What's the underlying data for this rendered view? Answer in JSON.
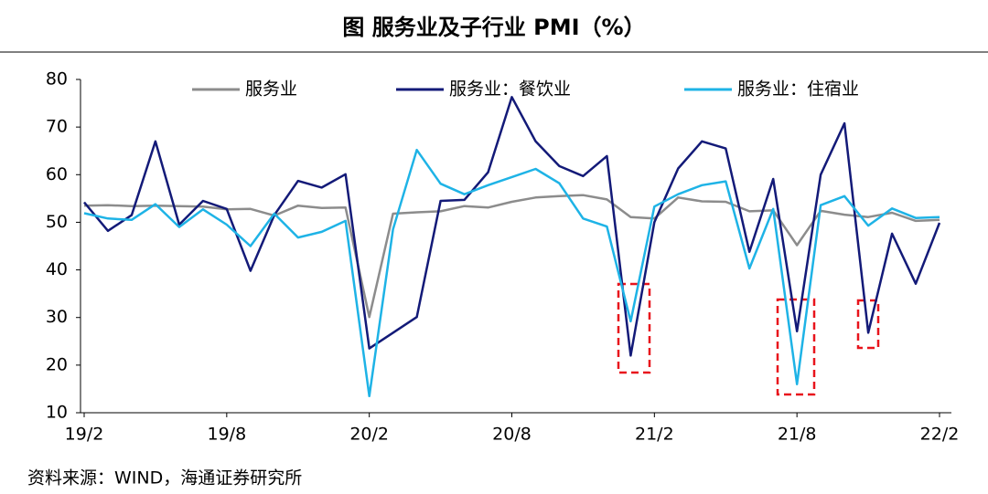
{
  "chart_data": {
    "type": "line",
    "title": "图 服务业及子行业 PMI（%）",
    "source": "资料来源：WIND，海通证券研究所",
    "categories": [
      "19/2",
      null,
      null,
      null,
      null,
      null,
      "19/8",
      null,
      null,
      null,
      null,
      null,
      "20/2",
      null,
      null,
      null,
      null,
      null,
      "20/8",
      null,
      null,
      null,
      null,
      null,
      "21/2",
      null,
      null,
      null,
      null,
      null,
      "21/8",
      null,
      null,
      null,
      null,
      null,
      "22/2"
    ],
    "series": [
      {
        "name": "服务业",
        "color": "#8c8c8c",
        "values": [
          53.5,
          53.6,
          53.4,
          53.5,
          53.4,
          53.3,
          52.7,
          52.8,
          51.4,
          53.5,
          53.0,
          53.1,
          30.1,
          51.8,
          52.1,
          52.3,
          53.4,
          53.1,
          54.3,
          55.2,
          55.5,
          55.7,
          54.8,
          51.1,
          50.8,
          55.2,
          54.4,
          54.3,
          52.3,
          52.5,
          45.2,
          52.4,
          51.6,
          51.1,
          52.0,
          50.3,
          50.5
        ]
      },
      {
        "name": "服务业：餐饮业",
        "color": "#131a78",
        "values": [
          54.2,
          48.2,
          51.5,
          67.0,
          49.5,
          54.5,
          52.8,
          39.8,
          51.5,
          58.7,
          57.3,
          60.1,
          23.5,
          26.8,
          30.1,
          54.5,
          54.7,
          60.5,
          76.3,
          67.0,
          61.8,
          59.7,
          63.9,
          22.0,
          50.0,
          61.3,
          67.0,
          65.5,
          43.8,
          59.1,
          27.1,
          60.0,
          70.8,
          26.8,
          47.6,
          37.1,
          49.9
        ]
      },
      {
        "name": "服务业：住宿业",
        "color": "#1eb3e6",
        "values": [
          51.9,
          50.8,
          50.5,
          53.8,
          49.0,
          52.7,
          49.5,
          45.0,
          51.8,
          46.8,
          48.0,
          50.3,
          13.5,
          48.5,
          65.2,
          58.1,
          55.9,
          57.8,
          59.5,
          61.2,
          58.2,
          50.8,
          49.1,
          29.2,
          53.3,
          55.9,
          57.8,
          58.6,
          40.3,
          52.8,
          16.0,
          53.6,
          55.5,
          49.3,
          52.9,
          50.9,
          51.1
        ]
      }
    ],
    "ylim": [
      10,
      80
    ],
    "yticks": [
      10,
      20,
      30,
      40,
      50,
      60,
      70,
      80
    ],
    "grid": false,
    "legend": "top"
  }
}
